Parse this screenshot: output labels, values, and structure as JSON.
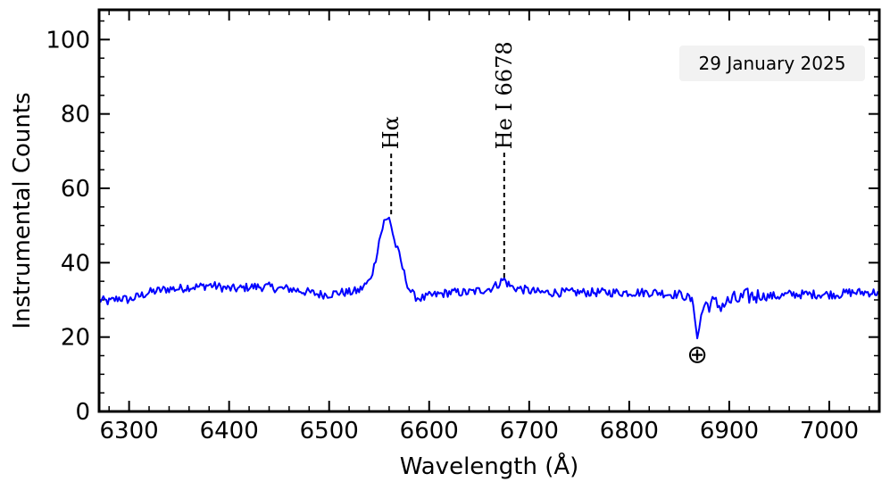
{
  "chart_data": {
    "type": "line",
    "title": "",
    "xlabel": "Wavelength (Å)",
    "ylabel": "Instrumental Counts",
    "xlim": [
      6270,
      7050
    ],
    "ylim": [
      0,
      108
    ],
    "x_ticks": [
      6300,
      6400,
      6500,
      6600,
      6700,
      6800,
      6900,
      7000
    ],
    "y_ticks": [
      0,
      20,
      40,
      60,
      80,
      100
    ],
    "x_minor_step": 20,
    "y_minor_step": 5,
    "line_color": "#0000ff",
    "series": [
      {
        "name": "spectrum",
        "x": [
          6270,
          6280,
          6290,
          6300,
          6310,
          6320,
          6330,
          6340,
          6350,
          6360,
          6370,
          6380,
          6390,
          6400,
          6410,
          6420,
          6430,
          6440,
          6450,
          6460,
          6470,
          6480,
          6490,
          6500,
          6510,
          6520,
          6530,
          6540,
          6545,
          6550,
          6555,
          6558,
          6560,
          6562,
          6565,
          6570,
          6575,
          6580,
          6585,
          6590,
          6595,
          6600,
          6610,
          6620,
          6630,
          6640,
          6650,
          6660,
          6668,
          6672,
          6675,
          6678,
          6682,
          6690,
          6700,
          6710,
          6720,
          6730,
          6740,
          6750,
          6760,
          6770,
          6780,
          6790,
          6800,
          6810,
          6820,
          6830,
          6840,
          6850,
          6855,
          6860,
          6864,
          6866,
          6868,
          6870,
          6872,
          6875,
          6880,
          6885,
          6890,
          6895,
          6900,
          6905,
          6910,
          6915,
          6920,
          6930,
          6940,
          6950,
          6960,
          6970,
          6980,
          6990,
          7000,
          7010,
          7020,
          7030,
          7040,
          7050
        ],
        "y": [
          30,
          29.5,
          30.5,
          30,
          31,
          32,
          32.5,
          33,
          33,
          33.5,
          33.5,
          34,
          33.5,
          33,
          33,
          33.5,
          33.5,
          33.5,
          33,
          33,
          32.5,
          32,
          31.5,
          31.5,
          32,
          32,
          32.5,
          35,
          39,
          46,
          51,
          51.5,
          52.5,
          50,
          46,
          42,
          37,
          33,
          31,
          30.5,
          30.5,
          31,
          31.5,
          32,
          32,
          32,
          32.5,
          33,
          34,
          35,
          35.5,
          34.5,
          33.5,
          33,
          32.5,
          32,
          32,
          32,
          32,
          32,
          32,
          32,
          32,
          32,
          32,
          32,
          32,
          32,
          31.5,
          31.5,
          31,
          30.5,
          29,
          25,
          20,
          22,
          26,
          28.5,
          29,
          29,
          28.5,
          29,
          29.5,
          30,
          30,
          30.5,
          31,
          31,
          31,
          31,
          31.5,
          31.5,
          31.5,
          31.5,
          31.5,
          31.5,
          32,
          32,
          32,
          32
        ]
      }
    ],
    "annotations": [
      {
        "label": "Hα",
        "x": 6562,
        "y_bottom": 53,
        "y_top": 70
      },
      {
        "label": "He I 6678",
        "x": 6675,
        "y_bottom": 36,
        "y_top": 70
      }
    ],
    "telluric": {
      "symbol": "⊕",
      "x": 6868,
      "y": 15.5
    },
    "date_label": "29 January 2025"
  }
}
